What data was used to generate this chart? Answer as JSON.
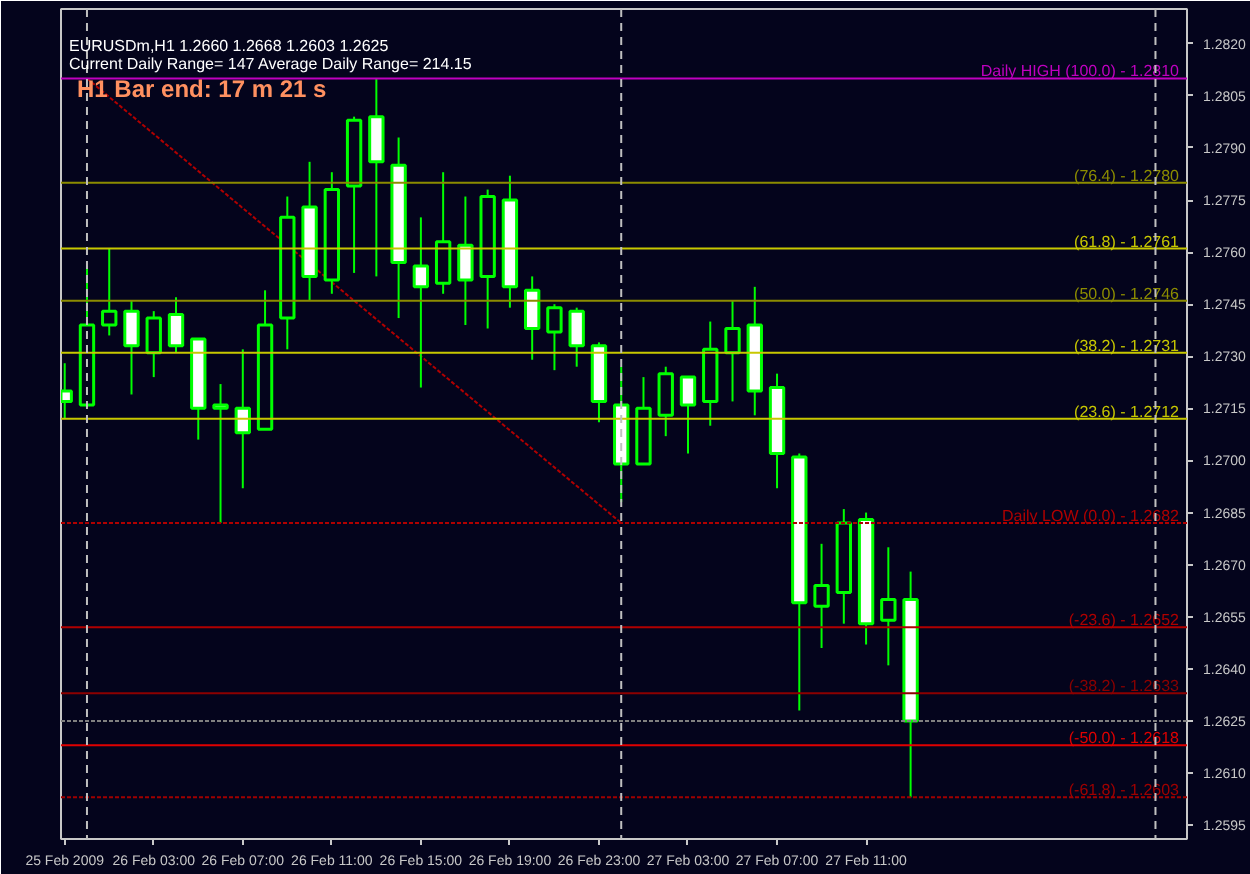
{
  "chart_data": {
    "type": "candlestick",
    "title": "EURUSDm,H1  1.2660 1.2668 1.2603 1.2625",
    "subtitle": "Current Daily Range= 147    Average Daily Range= 214.15",
    "annotations": [
      "H1 Bar end: 17 m 21 s",
      {
        "text": "Daily HIGH (100.0) - 1.2810",
        "x": "2009-02-28T01:25",
        "y": 1.281
      },
      {
        "text": "(76.4) - 1.2780",
        "x": "2009-02-28T01:25",
        "y": 1.278
      },
      {
        "text": "(61.8) - 1.2761",
        "x": "2009-02-28T01:25",
        "y": 1.2761
      },
      {
        "text": "(50.0) - 1.2746",
        "x": "2009-02-28T01:25",
        "y": 1.2746
      },
      {
        "text": "(38.2) - 1.2731",
        "x": "2009-02-28T01:25",
        "y": 1.2731
      },
      {
        "text": "(23.6) - 1.2712",
        "x": "2009-02-28T01:25",
        "y": 1.2712
      },
      {
        "text": "Daily LOW (0.0) - 1.2682",
        "x": "2009-02-28T01:25",
        "y": 1.2682
      },
      {
        "text": "(-23.6) - 1.2652",
        "x": "2009-02-28T01:25",
        "y": 1.2652
      },
      {
        "text": "(-38.2) - 1.2633",
        "x": "2009-02-28T01:25",
        "y": 1.2633
      },
      {
        "text": "(-50.0) - 1.2618",
        "x": "2009-02-28T01:25",
        "y": 1.2618
      },
      {
        "text": "(-61.8) - 1.2603",
        "x": "2009-02-28T01:25",
        "y": 1.2603
      }
    ],
    "x": [
      "2009-02-25T23:00",
      "2009-02-26T00:00",
      "2009-02-26T01:00",
      "2009-02-26T02:00",
      "2009-02-26T03:00",
      "2009-02-26T04:00",
      "2009-02-26T05:00",
      "2009-02-26T06:00",
      "2009-02-26T07:00",
      "2009-02-26T08:00",
      "2009-02-26T09:00",
      "2009-02-26T10:00",
      "2009-02-26T11:00",
      "2009-02-26T12:00",
      "2009-02-26T13:00",
      "2009-02-26T14:00",
      "2009-02-26T15:00",
      "2009-02-26T16:00",
      "2009-02-26T17:00",
      "2009-02-26T18:00",
      "2009-02-26T19:00",
      "2009-02-26T20:00",
      "2009-02-26T21:00",
      "2009-02-26T22:00",
      "2009-02-26T23:00",
      "2009-02-27T00:00",
      "2009-02-27T01:00",
      "2009-02-27T02:00",
      "2009-02-27T03:00",
      "2009-02-27T04:00",
      "2009-02-27T05:00",
      "2009-02-27T06:00",
      "2009-02-27T07:00",
      "2009-02-27T08:00",
      "2009-02-27T09:00",
      "2009-02-27T10:00",
      "2009-02-27T11:00",
      "2009-02-27T12:00",
      "2009-02-27T13:00"
    ],
    "ohlc": [
      [
        1.272,
        1.2728,
        1.2712,
        1.2717
      ],
      [
        1.2716,
        1.2756,
        1.2715,
        1.2739
      ],
      [
        1.2739,
        1.2761,
        1.2736,
        1.2743
      ],
      [
        1.2743,
        1.2746,
        1.2719,
        1.2733
      ],
      [
        1.2731,
        1.2743,
        1.2724,
        1.2741
      ],
      [
        1.2742,
        1.2747,
        1.2731,
        1.2733
      ],
      [
        1.2735,
        1.2735,
        1.2706,
        1.2715
      ],
      [
        1.2716,
        1.2722,
        1.2682,
        1.2715
      ],
      [
        1.2715,
        1.2732,
        1.2692,
        1.2708
      ],
      [
        1.2709,
        1.2749,
        1.2709,
        1.2739
      ],
      [
        1.2741,
        1.2776,
        1.2732,
        1.277
      ],
      [
        1.2773,
        1.2786,
        1.2746,
        1.2753
      ],
      [
        1.2752,
        1.2783,
        1.2748,
        1.2778
      ],
      [
        1.2779,
        1.2799,
        1.2754,
        1.2798
      ],
      [
        1.2799,
        1.281,
        1.2753,
        1.2786
      ],
      [
        1.2785,
        1.2793,
        1.2741,
        1.2757
      ],
      [
        1.2756,
        1.277,
        1.2721,
        1.275
      ],
      [
        1.2751,
        1.2783,
        1.2748,
        1.2763
      ],
      [
        1.2762,
        1.2776,
        1.2739,
        1.2752
      ],
      [
        1.2753,
        1.2778,
        1.2738,
        1.2776
      ],
      [
        1.2775,
        1.2782,
        1.2744,
        1.275
      ],
      [
        1.2749,
        1.2753,
        1.2729,
        1.2738
      ],
      [
        1.2737,
        1.2745,
        1.2726,
        1.2744
      ],
      [
        1.2743,
        1.2744,
        1.2727,
        1.2733
      ],
      [
        1.2733,
        1.2734,
        1.2711,
        1.2717
      ],
      [
        1.2716,
        1.2727,
        1.2688,
        1.2699
      ],
      [
        1.2699,
        1.2724,
        1.2699,
        1.2715
      ],
      [
        1.2713,
        1.2727,
        1.2707,
        1.2725
      ],
      [
        1.2724,
        1.2724,
        1.2702,
        1.2716
      ],
      [
        1.2717,
        1.274,
        1.271,
        1.2732
      ],
      [
        1.2731,
        1.2746,
        1.2717,
        1.2738
      ],
      [
        1.2739,
        1.275,
        1.2713,
        1.272
      ],
      [
        1.2721,
        1.2725,
        1.2692,
        1.2702
      ],
      [
        1.2701,
        1.2702,
        1.2628,
        1.2659
      ],
      [
        1.2658,
        1.2676,
        1.2646,
        1.2664
      ],
      [
        1.2662,
        1.2686,
        1.2653,
        1.2682
      ],
      [
        1.2683,
        1.2685,
        1.2647,
        1.2653
      ],
      [
        1.2654,
        1.2675,
        1.2641,
        1.266
      ],
      [
        1.266,
        1.2668,
        1.2603,
        1.2625
      ]
    ],
    "color": "#00ff00",
    "series": [
      {
        "type": "line",
        "color": "#b00000",
        "line_style": "dotted",
        "x": [
          "2009-02-26T00:00",
          "2009-02-27T00:00"
        ],
        "values": [
          1.281,
          1.2682
        ]
      }
    ],
    "xlim": [
      "2009-02-25T22:50",
      "2009-02-28T01:25"
    ],
    "xticks": [
      {
        "value": "2009-02-25T23:00",
        "label": "25 Feb 2009"
      },
      {
        "value": "2009-02-26T03:00",
        "label": "26 Feb 03:00"
      },
      {
        "value": "2009-02-26T07:00",
        "label": "26 Feb 07:00"
      },
      {
        "value": "2009-02-26T11:00",
        "label": "26 Feb 11:00"
      },
      {
        "value": "2009-02-26T15:00",
        "label": "26 Feb 15:00"
      },
      {
        "value": "2009-02-26T19:00",
        "label": "26 Feb 19:00"
      },
      {
        "value": "2009-02-26T23:00",
        "label": "26 Feb 23:00"
      },
      {
        "value": "2009-02-27T03:00",
        "label": "27 Feb 03:00"
      },
      {
        "value": "2009-02-27T07:00",
        "label": "27 Feb 07:00"
      },
      {
        "value": "2009-02-27T11:00",
        "label": "27 Feb 11:00"
      }
    ],
    "ylim": [
      1.2591,
      1.283
    ],
    "yticks": [
      {
        "value": 1.282,
        "label": "1.2820"
      },
      1.2805,
      {
        "value": 1.279,
        "label": "1.2790"
      },
      1.2775,
      {
        "value": 1.276,
        "label": "1.2760"
      },
      1.2745,
      {
        "value": 1.273,
        "label": "1.2730"
      },
      1.2715,
      {
        "value": 1.27,
        "label": "1.2700"
      },
      1.2685,
      {
        "value": 1.267,
        "label": "1.2670"
      },
      1.2655,
      {
        "value": 1.264,
        "label": "1.2640"
      },
      1.2625,
      {
        "value": 1.261,
        "label": "1.2610"
      },
      1.2595
    ],
    "ref_lines": [
      {
        "axis": "y",
        "value": 1.281,
        "label": null,
        "color": "#c000c0",
        "line_style": "solid"
      },
      {
        "axis": "y",
        "value": 1.278,
        "label": null,
        "color": "#8c8c00",
        "line_style": "solid"
      },
      {
        "axis": "y",
        "value": 1.2761,
        "label": null,
        "color": "#c8c800",
        "line_style": "solid"
      },
      {
        "axis": "y",
        "value": 1.2746,
        "label": null,
        "color": "#8c8c00",
        "line_style": "solid"
      },
      {
        "axis": "y",
        "value": 1.2731,
        "label": null,
        "color": "#c8c800",
        "line_style": "solid"
      },
      {
        "axis": "y",
        "value": 1.2712,
        "label": null,
        "color": "#c8c800",
        "line_style": "solid"
      },
      {
        "axis": "y",
        "value": 1.2682,
        "label": null,
        "color": "#b00000",
        "line_style": "dotted"
      },
      {
        "axis": "y",
        "value": 1.2652,
        "label": null,
        "color": "#b00000",
        "line_style": "solid"
      },
      {
        "axis": "y",
        "value": 1.2633,
        "label": null,
        "color": "#8c0000",
        "line_style": "solid"
      },
      {
        "axis": "y",
        "value": 1.2618,
        "label": null,
        "color": "#e00000",
        "line_style": "solid"
      },
      {
        "axis": "y",
        "value": 1.2603,
        "label": null,
        "color": "#a00000",
        "line_style": "dotted"
      },
      {
        "axis": "y",
        "value": 1.2625,
        "label": null,
        "color": "#808080",
        "line_style": "dotted"
      },
      {
        "axis": "x",
        "value": "2009-02-26T00:00",
        "label": null,
        "color": "#c0c0c0",
        "line_style": "dashed"
      },
      {
        "axis": "x",
        "value": "2009-02-27T00:00",
        "label": null,
        "color": "#c0c0c0",
        "line_style": "dashed"
      },
      {
        "axis": "x",
        "value": "2009-02-28T00:00",
        "label": null,
        "color": "#c0c0c0",
        "line_style": "dashed"
      }
    ]
  }
}
